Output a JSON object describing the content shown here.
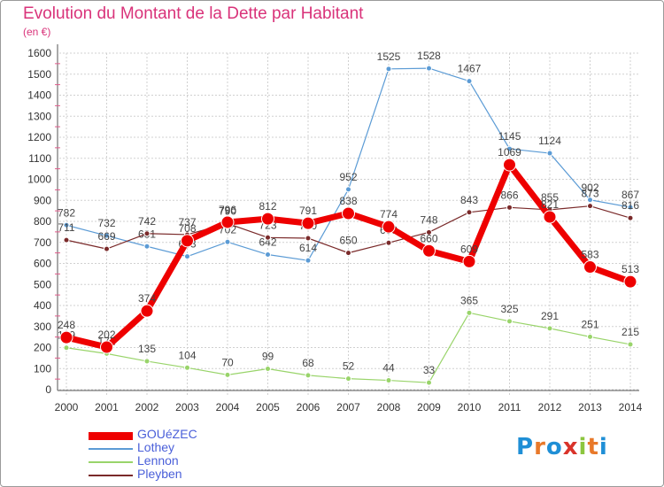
{
  "header": {
    "title": "Evolution du Montant de la Dette par Habitant",
    "subtitle": "(en €)"
  },
  "logo": {
    "letters": [
      "P",
      "r",
      "o",
      "x",
      "i",
      "t",
      "i"
    ],
    "colors": [
      "#1f8fd6",
      "#e8792a",
      "#1f8fd6",
      "#d9332a",
      "#8cc63f",
      "#e8792a",
      "#1f8fd6"
    ]
  },
  "chart_data": {
    "type": "line",
    "x": [
      "2000",
      "2001",
      "2002",
      "2003",
      "2004",
      "2005",
      "2006",
      "2007",
      "2008",
      "2009",
      "2010",
      "2011",
      "2012",
      "2013",
      "2014"
    ],
    "ylim": [
      0,
      1600
    ],
    "yticks": [
      0,
      100,
      200,
      300,
      400,
      500,
      600,
      700,
      800,
      900,
      1000,
      1100,
      1200,
      1300,
      1400,
      1500,
      1600
    ],
    "grid": true,
    "legend_position": "bottom-left",
    "series": [
      {
        "name": "Lothey",
        "color": "#5b9bd5",
        "values": [
          782,
          732,
          681,
          633,
          702,
          642,
          614,
          952,
          1525,
          1528,
          1467,
          1145,
          1124,
          902,
          867
        ]
      },
      {
        "name": "Lennon",
        "color": "#99d46a",
        "values": [
          199,
          171,
          135,
          104,
          70,
          99,
          68,
          52,
          44,
          33,
          365,
          325,
          291,
          251,
          215
        ]
      },
      {
        "name": "Pleyben",
        "color": "#7a2a2a",
        "values": [
          711,
          669,
          742,
          737,
          790,
          723,
          720,
          650,
          698,
          748,
          843,
          866,
          855,
          873,
          816
        ]
      },
      {
        "name": "GOUéZEC",
        "color": "#ee0000",
        "values": [
          248,
          202,
          374,
          708,
          796,
          812,
          791,
          838,
          774,
          660,
          609,
          1069,
          821,
          583,
          513
        ]
      }
    ]
  }
}
